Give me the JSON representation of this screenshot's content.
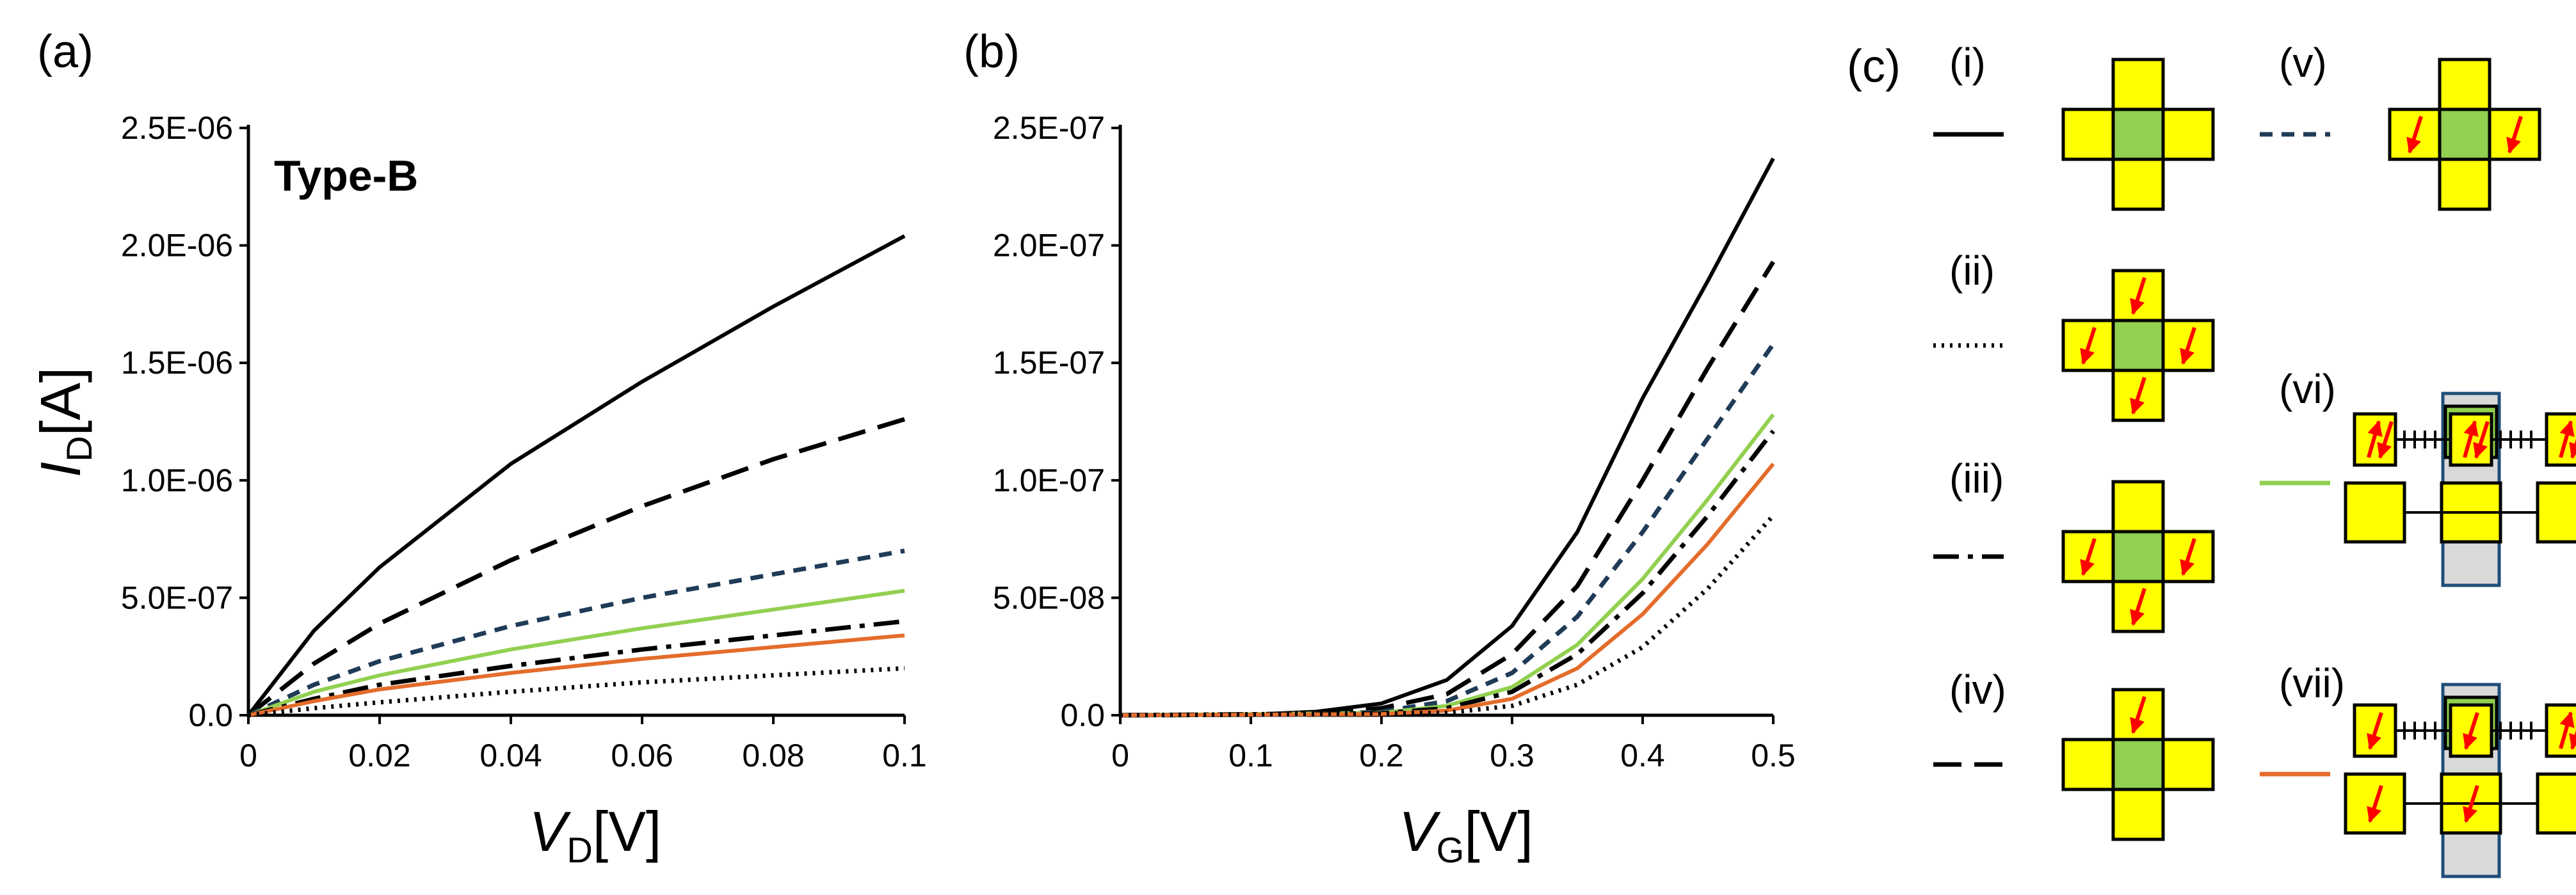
{
  "panel_labels": {
    "a": "(a)",
    "b": "(b)",
    "c": "(c)"
  },
  "colors": {
    "black": "#000000",
    "navy": "#1f3b57",
    "green": "#92d050",
    "orange": "#e46c2b",
    "cell_yellow": "#ffff00",
    "cell_green": "#92d050",
    "cell_gray": "#d9d9d9",
    "frame_blue": "#1f4e79",
    "arrow_red": "#ff0000"
  },
  "chart_data": [
    {
      "type": "line",
      "annotation": "Type-B",
      "xlabel": {
        "symbol": "V",
        "sub": "D",
        "unit": "[V]"
      },
      "ylabel": {
        "symbol": "I",
        "sub": "D",
        "unit": "[A]"
      },
      "xlim": [
        0,
        0.1
      ],
      "ylim": [
        0,
        2.5e-06
      ],
      "x_ticks": [
        {
          "v": 0,
          "label": "0"
        },
        {
          "v": 0.02,
          "label": "0.02"
        },
        {
          "v": 0.04,
          "label": "0.04"
        },
        {
          "v": 0.06,
          "label": "0.06"
        },
        {
          "v": 0.08,
          "label": "0.08"
        },
        {
          "v": 0.1,
          "label": "0.1"
        }
      ],
      "y_ticks": [
        {
          "v": 0,
          "label": "0.0"
        },
        {
          "v": 5e-07,
          "label": "5.0E-07"
        },
        {
          "v": 1e-06,
          "label": "1.0E-06"
        },
        {
          "v": 1.5e-06,
          "label": "1.5E-06"
        },
        {
          "v": 2e-06,
          "label": "2.0E-06"
        },
        {
          "v": 2.5e-06,
          "label": "2.5E-06"
        }
      ],
      "series": [
        {
          "key": "i",
          "style": "solid",
          "color": "#000000",
          "x": [
            0,
            0.01,
            0.02,
            0.04,
            0.06,
            0.08,
            0.1
          ],
          "y": [
            0,
            3.6e-07,
            6.3e-07,
            1.07e-06,
            1.42e-06,
            1.74e-06,
            2.04e-06
          ]
        },
        {
          "key": "iv",
          "style": "longdash",
          "color": "#000000",
          "x": [
            0,
            0.01,
            0.02,
            0.04,
            0.06,
            0.08,
            0.1
          ],
          "y": [
            0,
            2.2e-07,
            3.9e-07,
            6.6e-07,
            8.9e-07,
            1.09e-06,
            1.26e-06
          ]
        },
        {
          "key": "v",
          "style": "shortdash",
          "color": "#1f3b57",
          "x": [
            0,
            0.01,
            0.02,
            0.04,
            0.06,
            0.08,
            0.1
          ],
          "y": [
            0,
            1.3e-07,
            2.3e-07,
            3.8e-07,
            5e-07,
            6e-07,
            7e-07
          ]
        },
        {
          "key": "vi",
          "style": "solid",
          "color": "#92d050",
          "x": [
            0,
            0.01,
            0.02,
            0.04,
            0.06,
            0.08,
            0.1
          ],
          "y": [
            0,
            1e-07,
            1.7e-07,
            2.8e-07,
            3.7e-07,
            4.5e-07,
            5.3e-07
          ]
        },
        {
          "key": "iii",
          "style": "dashdot",
          "color": "#000000",
          "x": [
            0,
            0.01,
            0.02,
            0.04,
            0.06,
            0.08,
            0.1
          ],
          "y": [
            0,
            7e-08,
            1.3e-07,
            2.1e-07,
            2.8e-07,
            3.4e-07,
            4e-07
          ]
        },
        {
          "key": "vii",
          "style": "solid",
          "color": "#e46c2b",
          "x": [
            0,
            0.01,
            0.02,
            0.04,
            0.06,
            0.08,
            0.1
          ],
          "y": [
            0,
            6e-08,
            1.1e-07,
            1.8e-07,
            2.4e-07,
            2.9e-07,
            3.4e-07
          ]
        },
        {
          "key": "ii",
          "style": "dotted",
          "color": "#000000",
          "x": [
            0,
            0.01,
            0.02,
            0.04,
            0.06,
            0.08,
            0.1
          ],
          "y": [
            0,
            3e-08,
            5.5e-08,
            1e-07,
            1.4e-07,
            1.7e-07,
            2e-07
          ]
        }
      ]
    },
    {
      "type": "line",
      "xlabel": {
        "symbol": "V",
        "sub": "G",
        "unit": "[V]"
      },
      "xlim": [
        0,
        0.5
      ],
      "ylim": [
        0,
        2.5e-07
      ],
      "x_ticks": [
        {
          "v": 0,
          "label": "0"
        },
        {
          "v": 0.1,
          "label": "0.1"
        },
        {
          "v": 0.2,
          "label": "0.2"
        },
        {
          "v": 0.3,
          "label": "0.3"
        },
        {
          "v": 0.4,
          "label": "0.4"
        },
        {
          "v": 0.5,
          "label": "0.5"
        }
      ],
      "y_ticks": [
        {
          "v": 0,
          "label": "0.0"
        },
        {
          "v": 5e-08,
          "label": "5.0E-08"
        },
        {
          "v": 1e-07,
          "label": "1.0E-07"
        },
        {
          "v": 1.5e-07,
          "label": "1.5E-07"
        },
        {
          "v": 2e-07,
          "label": "2.0E-07"
        },
        {
          "v": 2.5e-07,
          "label": "2.5E-07"
        }
      ],
      "series": [
        {
          "key": "i",
          "style": "solid",
          "color": "#000000",
          "x": [
            0,
            0.1,
            0.15,
            0.2,
            0.25,
            0.3,
            0.35,
            0.4,
            0.45,
            0.5
          ],
          "y": [
            0,
            3e-10,
            1.5e-09,
            5e-09,
            1.5e-08,
            3.8e-08,
            7.8e-08,
            1.35e-07,
            1.85e-07,
            2.37e-07
          ]
        },
        {
          "key": "iv",
          "style": "longdash",
          "color": "#000000",
          "x": [
            0,
            0.1,
            0.15,
            0.2,
            0.25,
            0.3,
            0.35,
            0.4,
            0.45,
            0.5
          ],
          "y": [
            0,
            2e-10,
            8e-10,
            3e-09,
            9e-09,
            2.6e-08,
            5.5e-08,
            1e-07,
            1.48e-07,
            1.93e-07
          ]
        },
        {
          "key": "v",
          "style": "shortdash",
          "color": "#1f3b57",
          "x": [
            0,
            0.15,
            0.2,
            0.25,
            0.3,
            0.35,
            0.4,
            0.45,
            0.5
          ],
          "y": [
            0,
            3e-10,
            1.5e-09,
            6e-09,
            1.8e-08,
            4.2e-08,
            7.8e-08,
            1.18e-07,
            1.58e-07
          ]
        },
        {
          "key": "vi",
          "style": "solid",
          "color": "#92d050",
          "x": [
            0,
            0.2,
            0.25,
            0.3,
            0.35,
            0.4,
            0.45,
            0.5
          ],
          "y": [
            0,
            1e-09,
            4e-09,
            1.2e-08,
            3e-08,
            5.8e-08,
            9.2e-08,
            1.28e-07
          ]
        },
        {
          "key": "iii",
          "style": "dashdot",
          "color": "#000000",
          "x": [
            0,
            0.2,
            0.25,
            0.3,
            0.35,
            0.4,
            0.45,
            0.5
          ],
          "y": [
            0,
            8e-10,
            3e-09,
            1e-08,
            2.6e-08,
            5.2e-08,
            8.5e-08,
            1.21e-07
          ]
        },
        {
          "key": "vii",
          "style": "solid",
          "color": "#e46c2b",
          "x": [
            0,
            0.2,
            0.25,
            0.3,
            0.35,
            0.4,
            0.45,
            0.5
          ],
          "y": [
            0,
            5e-10,
            2e-09,
            7e-09,
            2e-08,
            4.3e-08,
            7.3e-08,
            1.07e-07
          ]
        },
        {
          "key": "ii",
          "style": "dotted",
          "color": "#000000",
          "x": [
            0,
            0.25,
            0.3,
            0.35,
            0.4,
            0.45,
            0.5
          ],
          "y": [
            0,
            1e-09,
            4e-09,
            1.3e-08,
            2.9e-08,
            5.4e-08,
            8.5e-08
          ]
        }
      ]
    }
  ],
  "legend_c": [
    {
      "numeral": "(i)",
      "key": "i",
      "style": "solid",
      "color": "#000000",
      "layout": "cross",
      "arrows": "none"
    },
    {
      "numeral": "(ii)",
      "key": "ii",
      "style": "dotted",
      "color": "#000000",
      "layout": "cross",
      "arrows": "all"
    },
    {
      "numeral": "(iii)",
      "key": "iii",
      "style": "dashdot",
      "color": "#000000",
      "layout": "cross",
      "arrows": "sides_bottom"
    },
    {
      "numeral": "(iv)",
      "key": "iv",
      "style": "longdash",
      "color": "#000000",
      "layout": "cross",
      "arrows": "top"
    },
    {
      "numeral": "(v)",
      "key": "v",
      "style": "shortdash",
      "color": "#1f3b57",
      "layout": "cross",
      "arrows": "sides"
    },
    {
      "numeral": "(vi)",
      "key": "vi",
      "style": "solid",
      "color": "#92d050",
      "layout": "stack",
      "arrows": "upper_double"
    },
    {
      "numeral": "(vii)",
      "key": "vii",
      "style": "solid",
      "color": "#e46c2b",
      "layout": "stack",
      "arrows": "mixed"
    }
  ]
}
